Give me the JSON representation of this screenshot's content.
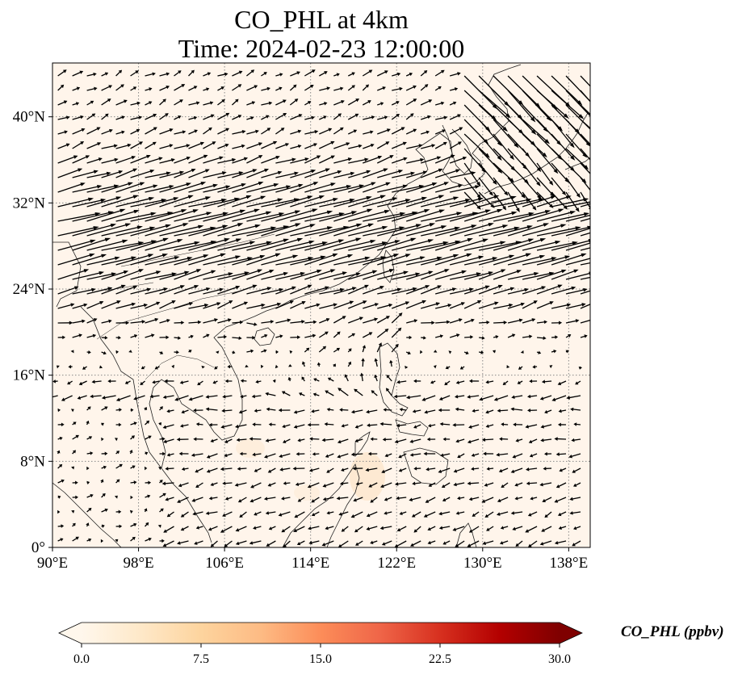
{
  "title": {
    "line1": "CO_PHL at 4km",
    "line2": "Time: 2024-02-23 12:00:00"
  },
  "map": {
    "lon_range": [
      90,
      140
    ],
    "lat_range": [
      0,
      45
    ],
    "background_color": "#fff5eb",
    "coastline_color": "#222222",
    "gridline_color": "#888888",
    "gridline_style": "dotted",
    "x_tick_labels": [
      {
        "lon": 90,
        "label": "90°E"
      },
      {
        "lon": 98,
        "label": "98°E"
      },
      {
        "lon": 106,
        "label": "106°E"
      },
      {
        "lon": 114,
        "label": "114°E"
      },
      {
        "lon": 122,
        "label": "122°E"
      },
      {
        "lon": 130,
        "label": "130°E"
      },
      {
        "lon": 138,
        "label": "138°E"
      }
    ],
    "y_tick_labels": [
      {
        "lat": 0,
        "label": "0°"
      },
      {
        "lat": 8,
        "label": "8°N"
      },
      {
        "lat": 16,
        "label": "16°N"
      },
      {
        "lat": 24,
        "label": "24°N"
      },
      {
        "lat": 32,
        "label": "32°N"
      },
      {
        "lat": 40,
        "label": "40°N"
      }
    ],
    "overlay": "wind vectors (quiver)",
    "arrow_color": "#000000"
  },
  "colorbar": {
    "label": "CO_PHL (ppbv)",
    "min": 0.0,
    "max": 30.0,
    "extend": "both",
    "colormap": "OrRd",
    "ticks": [
      {
        "value": 0.0,
        "label": "0.0"
      },
      {
        "value": 7.5,
        "label": "7.5"
      },
      {
        "value": 15.0,
        "label": "15.0"
      },
      {
        "value": 22.5,
        "label": "22.5"
      },
      {
        "value": 30.0,
        "label": "30.0"
      }
    ],
    "colors": [
      "#fff7ec",
      "#fee8c8",
      "#fdd49e",
      "#fdbb84",
      "#fc8d59",
      "#ef6548",
      "#d7301f",
      "#b30000",
      "#7f0000"
    ]
  }
}
